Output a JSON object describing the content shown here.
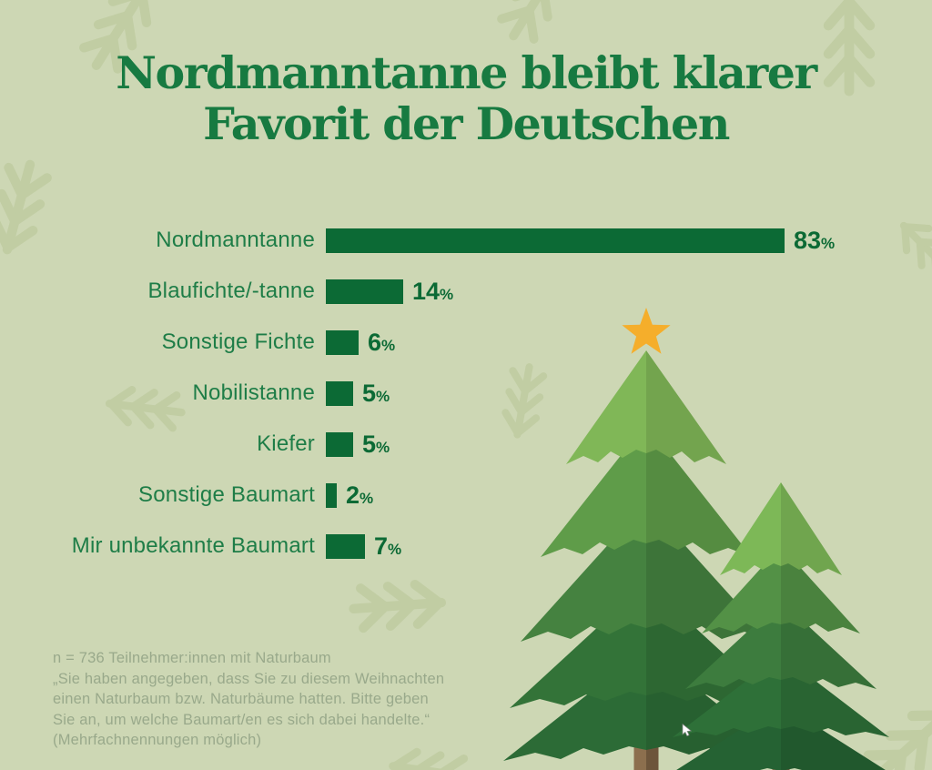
{
  "title": {
    "line1": "Nordmanntanne bleibt klarer",
    "line2": "Favorit der Deutschen"
  },
  "chart_data": {
    "type": "bar",
    "orientation": "horizontal",
    "title": "Nordmanntanne bleibt klarer Favorit der Deutschen",
    "categories": [
      "Nordmanntanne",
      "Blaufichte/-tanne",
      "Sonstige Fichte",
      "Nobilistanne",
      "Kiefer",
      "Sonstige Baumart",
      "Mir unbekannte Baumart"
    ],
    "values": [
      83,
      14,
      6,
      5,
      5,
      2,
      7
    ],
    "unit": "%",
    "xlim": [
      0,
      83
    ],
    "grid": false,
    "legend": false
  },
  "footnote": {
    "lines": [
      "n = 736 Teilnehmer:innen mit Naturbaum",
      "„Sie haben angegeben, dass Sie zu diesem Weihnachten",
      "einen Naturbaum bzw. Naturbäume hatten. Bitte geben",
      "Sie an, um welche Baumart/en es sich dabei handelte.“",
      "(Mehrfachnennungen möglich)"
    ]
  },
  "illustration": {
    "star": "gold star on top of large fir tree",
    "trees": "two stylized fir trees bottom right"
  },
  "colors": {
    "background": "#cdd7b4",
    "pattern": "#c1cda3",
    "title_green": "#177a41",
    "label_green": "#1e7d47",
    "bar_green": "#0c6a35",
    "value_green": "#0c6a35",
    "footnote_gray": "#99a98b",
    "star_gold": "#f5ae2b",
    "trunk_light": "#8c6f4e",
    "trunk_dark": "#6d553b",
    "big_tree_tiers": [
      "#80b757",
      "#5f9c49",
      "#458240",
      "#337338",
      "#2c6b36"
    ],
    "small_tree_tiers": [
      "#7db857",
      "#539146",
      "#3d7c3e",
      "#2e7038",
      "#256233"
    ]
  }
}
